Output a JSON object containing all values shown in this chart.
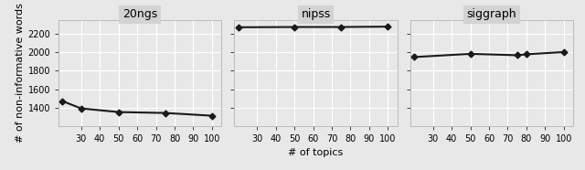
{
  "panels": [
    {
      "title": "20ngs",
      "x": [
        20,
        30,
        50,
        75,
        100
      ],
      "y": [
        1470,
        1390,
        1350,
        1340,
        1310
      ]
    },
    {
      "title": "nipss",
      "x": [
        20,
        50,
        75,
        100
      ],
      "y": [
        2275,
        2278,
        2278,
        2282
      ]
    },
    {
      "title": "siggraph",
      "x": [
        20,
        50,
        75,
        80,
        100
      ],
      "y": [
        1950,
        1985,
        1970,
        1980,
        2005
      ]
    }
  ],
  "ylim": [
    1200,
    2350
  ],
  "yticks": [
    1400,
    1600,
    1800,
    2000,
    2200
  ],
  "xticks": [
    30,
    40,
    50,
    60,
    70,
    80,
    90,
    100
  ],
  "xlabel": "# of topics",
  "ylabel": "# of non-informative words",
  "bg_color": "#e8e8e8",
  "strip_color": "#d3d3d3",
  "line_color": "#1a1a1a",
  "marker": "D",
  "markersize": 3.5,
  "linewidth": 1.5,
  "title_fontsize": 9,
  "label_fontsize": 8,
  "tick_fontsize": 7
}
